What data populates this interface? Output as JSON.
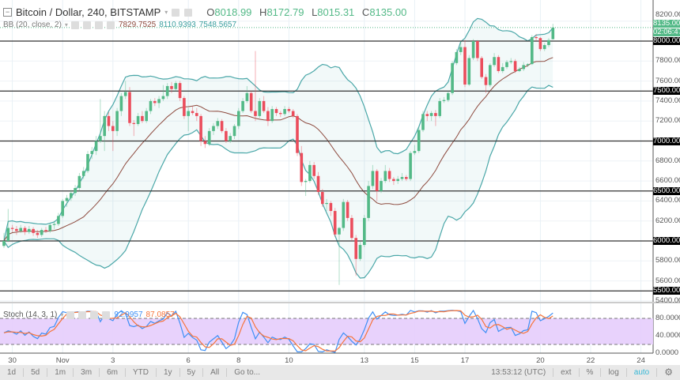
{
  "header": {
    "symbol": "Bitcoin / Dollar, 240, BITSTAMP",
    "open_label": "O",
    "open": "8018.99",
    "high_label": "H",
    "high": "8172.79",
    "low_label": "L",
    "low": "8015.31",
    "close_label": "C",
    "close": "8135.00"
  },
  "bb": {
    "label": "BB (20, close, 2)",
    "basis": "7829.7525",
    "upper": "8110.9393",
    "lower": "7548.5657"
  },
  "stoch": {
    "label": "Stoch (14, 3, 1)",
    "k": "92.9957",
    "d": "87.0857"
  },
  "price_axis": {
    "labels": [
      "8200.00",
      "7800.00",
      "7600.00",
      "7400.00",
      "7200.00",
      "6800.00",
      "6600.00",
      "6400.00",
      "6200.00",
      "5800.00",
      "5600.00",
      "5400.00"
    ],
    "levels": [
      8200,
      7800,
      7600,
      7400,
      7200,
      6800,
      6600,
      6400,
      6200,
      5800,
      5600,
      5400
    ],
    "current_price": "8135.00",
    "countdown": "02:06:47"
  },
  "horizontal_lines": {
    "labels": [
      "8000.00",
      "7500.00",
      "7000.00",
      "6500.00",
      "6000.00",
      "5500.00"
    ],
    "levels": [
      8000,
      7500,
      7000,
      6500,
      6000,
      5500
    ]
  },
  "stoch_axis": {
    "labels": [
      "80.0000",
      "40.0000",
      "0.0000"
    ],
    "levels": [
      80,
      40,
      0
    ],
    "bands": [
      80,
      20
    ]
  },
  "toolbar": {
    "ranges": [
      "1d",
      "5d",
      "1m",
      "3m",
      "6m",
      "YTD",
      "1y",
      "5y",
      "All",
      "Go to..."
    ],
    "time": "13:53:12 (UTC)",
    "ext": "ext",
    "percent": "%",
    "log": "log",
    "auto": "auto"
  },
  "colors": {
    "up": "#53b987",
    "down": "#eb4d5c",
    "bb_band": "#4aa7a8",
    "bb_basis": "#8d4a3e",
    "stoch_k": "#3d8ff5",
    "stoch_d": "#f6743a",
    "stoch_fill": "#e6cdfc",
    "level_label_bg": "#000000"
  },
  "chart_data": {
    "type": "candlestick",
    "title": "Bitcoin / Dollar, 240, BITSTAMP",
    "ylim": [
      5350,
      8250
    ],
    "grid": true,
    "x_ticks": [
      {
        "label": "30",
        "bar": 2
      },
      {
        "label": "Nov",
        "bar": 14
      },
      {
        "label": "3",
        "bar": 26
      },
      {
        "label": "6",
        "bar": 44
      },
      {
        "label": "8",
        "bar": 56
      },
      {
        "label": "10",
        "bar": 68
      },
      {
        "label": "13",
        "bar": 86
      },
      {
        "label": "15",
        "bar": 98
      },
      {
        "label": "17",
        "bar": 110
      },
      {
        "label": "20",
        "bar": 128
      },
      {
        "label": "22",
        "bar": 140
      },
      {
        "label": "24",
        "bar": 152
      }
    ],
    "ohlc_fields": [
      "open",
      "high",
      "low",
      "close"
    ],
    "candles": [
      [
        5950,
        6080,
        5930,
        6000
      ],
      [
        6000,
        6320,
        5990,
        6130
      ],
      [
        6130,
        6160,
        6090,
        6120
      ],
      [
        6120,
        6150,
        6060,
        6100
      ],
      [
        6100,
        6160,
        6080,
        6130
      ],
      [
        6130,
        6150,
        6060,
        6090
      ],
      [
        6090,
        6150,
        6070,
        6120
      ],
      [
        6120,
        6140,
        6050,
        6080
      ],
      [
        6080,
        6110,
        6030,
        6060
      ],
      [
        6060,
        6130,
        6040,
        6110
      ],
      [
        6110,
        6140,
        6080,
        6100
      ],
      [
        6100,
        6180,
        6080,
        6160
      ],
      [
        6160,
        6200,
        6120,
        6170
      ],
      [
        6170,
        6280,
        6150,
        6250
      ],
      [
        6250,
        6420,
        6230,
        6400
      ],
      [
        6400,
        6460,
        6340,
        6430
      ],
      [
        6430,
        6510,
        6400,
        6480
      ],
      [
        6480,
        6560,
        6450,
        6530
      ],
      [
        6530,
        6680,
        6500,
        6650
      ],
      [
        6650,
        6740,
        6620,
        6700
      ],
      [
        6700,
        6900,
        6680,
        6870
      ],
      [
        6870,
        6940,
        6820,
        6900
      ],
      [
        6900,
        7050,
        6860,
        7000
      ],
      [
        7000,
        7420,
        6980,
        7050
      ],
      [
        7050,
        7300,
        6900,
        7250
      ],
      [
        7250,
        7290,
        7100,
        7150
      ],
      [
        7150,
        7200,
        6900,
        7100
      ],
      [
        7100,
        7330,
        7050,
        7300
      ],
      [
        7300,
        7480,
        7250,
        7450
      ],
      [
        7450,
        7600,
        7420,
        7490
      ],
      [
        7490,
        7540,
        7150,
        7180
      ],
      [
        7180,
        7210,
        7050,
        7170
      ],
      [
        7170,
        7280,
        7150,
        7250
      ],
      [
        7250,
        7300,
        7180,
        7200
      ],
      [
        7200,
        7330,
        7180,
        7300
      ],
      [
        7300,
        7420,
        7270,
        7400
      ],
      [
        7400,
        7430,
        7350,
        7380
      ],
      [
        7380,
        7450,
        7330,
        7420
      ],
      [
        7420,
        7560,
        7400,
        7450
      ],
      [
        7450,
        7580,
        7420,
        7550
      ],
      [
        7550,
        7590,
        7480,
        7520
      ],
      [
        7520,
        7600,
        7500,
        7580
      ],
      [
        7580,
        7600,
        7400,
        7430
      ],
      [
        7430,
        7450,
        7220,
        7250
      ],
      [
        7250,
        7330,
        7100,
        7300
      ],
      [
        7300,
        7350,
        7260,
        7280
      ],
      [
        7280,
        7330,
        7200,
        7250
      ],
      [
        7250,
        7270,
        6950,
        7000
      ],
      [
        7000,
        7050,
        6930,
        6970
      ],
      [
        6970,
        7130,
        6950,
        7100
      ],
      [
        7100,
        7180,
        7060,
        7150
      ],
      [
        7150,
        7230,
        7120,
        7200
      ],
      [
        7200,
        7220,
        7080,
        7100
      ],
      [
        7100,
        7130,
        6980,
        7000
      ],
      [
        7000,
        7080,
        6980,
        7050
      ],
      [
        7050,
        7170,
        7020,
        7150
      ],
      [
        7150,
        7330,
        7120,
        7300
      ],
      [
        7300,
        7430,
        7280,
        7400
      ],
      [
        7400,
        7550,
        7380,
        7480
      ],
      [
        7480,
        7500,
        7280,
        7300
      ],
      [
        7300,
        7900,
        7200,
        7250
      ],
      [
        7250,
        7430,
        7230,
        7400
      ],
      [
        7400,
        7450,
        7280,
        7300
      ],
      [
        7300,
        7340,
        7150,
        7200
      ],
      [
        7200,
        7350,
        7180,
        7320
      ],
      [
        7320,
        7340,
        7250,
        7280
      ],
      [
        7280,
        7300,
        7240,
        7270
      ],
      [
        7270,
        7350,
        7250,
        7320
      ],
      [
        7320,
        7340,
        7280,
        7300
      ],
      [
        7300,
        7320,
        7230,
        7250
      ],
      [
        7250,
        7270,
        6850,
        6880
      ],
      [
        6880,
        6950,
        6550,
        6590
      ],
      [
        6590,
        6620,
        6450,
        6600
      ],
      [
        6600,
        6800,
        6580,
        6760
      ],
      [
        6760,
        6790,
        6620,
        6650
      ],
      [
        6650,
        6690,
        6460,
        6490
      ],
      [
        6490,
        6520,
        6340,
        6370
      ],
      [
        6370,
        6420,
        6300,
        6380
      ],
      [
        6380,
        6400,
        6250,
        6300
      ],
      [
        6300,
        6330,
        6040,
        6065
      ],
      [
        6065,
        6140,
        5560,
        6130
      ],
      [
        6130,
        6420,
        6100,
        6390
      ],
      [
        6390,
        6410,
        6200,
        6230
      ],
      [
        6230,
        6260,
        6000,
        6030
      ],
      [
        6030,
        6060,
        5650,
        5820
      ],
      [
        5820,
        5990,
        5800,
        5960
      ],
      [
        5960,
        6260,
        5940,
        6230
      ],
      [
        6230,
        6600,
        6200,
        6550
      ],
      [
        6550,
        6760,
        6520,
        6700
      ],
      [
        6700,
        6720,
        6400,
        6500
      ],
      [
        6500,
        6630,
        6480,
        6600
      ],
      [
        6600,
        6760,
        6580,
        6700
      ],
      [
        6700,
        6730,
        6590,
        6620
      ],
      [
        6620,
        6640,
        6560,
        6600
      ],
      [
        6600,
        6650,
        6570,
        6620
      ],
      [
        6620,
        6680,
        6600,
        6640
      ],
      [
        6640,
        6660,
        6600,
        6620
      ],
      [
        6620,
        6900,
        6600,
        6880
      ],
      [
        6880,
        6960,
        6860,
        6900
      ],
      [
        6900,
        7140,
        6880,
        7110
      ],
      [
        7110,
        7300,
        7090,
        7270
      ],
      [
        7270,
        7300,
        7200,
        7250
      ],
      [
        7250,
        7300,
        7200,
        7280
      ],
      [
        7280,
        7310,
        7150,
        7250
      ],
      [
        7250,
        7430,
        7230,
        7400
      ],
      [
        7400,
        7440,
        7380,
        7410
      ],
      [
        7410,
        7500,
        7390,
        7480
      ],
      [
        7480,
        7800,
        7460,
        7780
      ],
      [
        7780,
        7920,
        7760,
        7890
      ],
      [
        7890,
        8000,
        7860,
        7940
      ],
      [
        7940,
        8010,
        7540,
        7565
      ],
      [
        7565,
        7860,
        7550,
        7830
      ],
      [
        7830,
        8020,
        7810,
        8000
      ],
      [
        8000,
        8010,
        7800,
        7830
      ],
      [
        7830,
        7850,
        7620,
        7640
      ],
      [
        7640,
        7670,
        7480,
        7560
      ],
      [
        7560,
        7780,
        7540,
        7760
      ],
      [
        7760,
        7880,
        7740,
        7840
      ],
      [
        7840,
        7860,
        7680,
        7700
      ],
      [
        7700,
        7780,
        7680,
        7740
      ],
      [
        7740,
        7810,
        7720,
        7790
      ],
      [
        7790,
        7830,
        7770,
        7800
      ],
      [
        7800,
        7820,
        7680,
        7700
      ],
      [
        7700,
        7740,
        7690,
        7720
      ],
      [
        7720,
        7790,
        7700,
        7760
      ],
      [
        7760,
        7780,
        7740,
        7770
      ],
      [
        7770,
        8060,
        7760,
        8040
      ],
      [
        8040,
        8070,
        8000,
        8030
      ],
      [
        8030,
        8040,
        7900,
        7920
      ],
      [
        7920,
        7980,
        7900,
        7960
      ],
      [
        7960,
        8030,
        7940,
        8010
      ],
      [
        8018.99,
        8172.79,
        8015.31,
        8135
      ]
    ],
    "indicators": [
      "Bollinger Bands (20, close, 2)",
      "Stochastic (14, 3, 1)"
    ]
  }
}
